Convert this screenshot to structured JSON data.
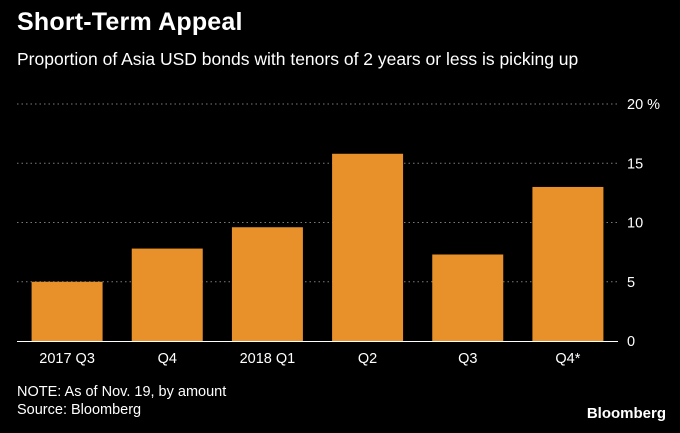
{
  "header": {
    "title": "Short-Term Appeal",
    "subtitle": "Proportion of Asia USD bonds with tenors of 2 years or less is picking up"
  },
  "footer": {
    "note": "NOTE: As of Nov. 19, by amount",
    "source": "Source: Bloomberg",
    "brand": "Bloomberg"
  },
  "colors": {
    "background": "#000000",
    "bar": "#e8902a",
    "text": "#ffffff",
    "grid": "#7a7a7a"
  },
  "chart_data": {
    "type": "bar",
    "categories": [
      "2017 Q3",
      "Q4",
      "2018 Q1",
      "Q2",
      "Q3",
      "Q4*"
    ],
    "values": [
      5.0,
      7.8,
      9.6,
      15.8,
      7.3,
      13.0
    ],
    "ylim": [
      0,
      20
    ],
    "yticks": [
      "0",
      "5",
      "10",
      "15",
      "20 %"
    ],
    "grid": true,
    "yaxis_position": "right"
  }
}
